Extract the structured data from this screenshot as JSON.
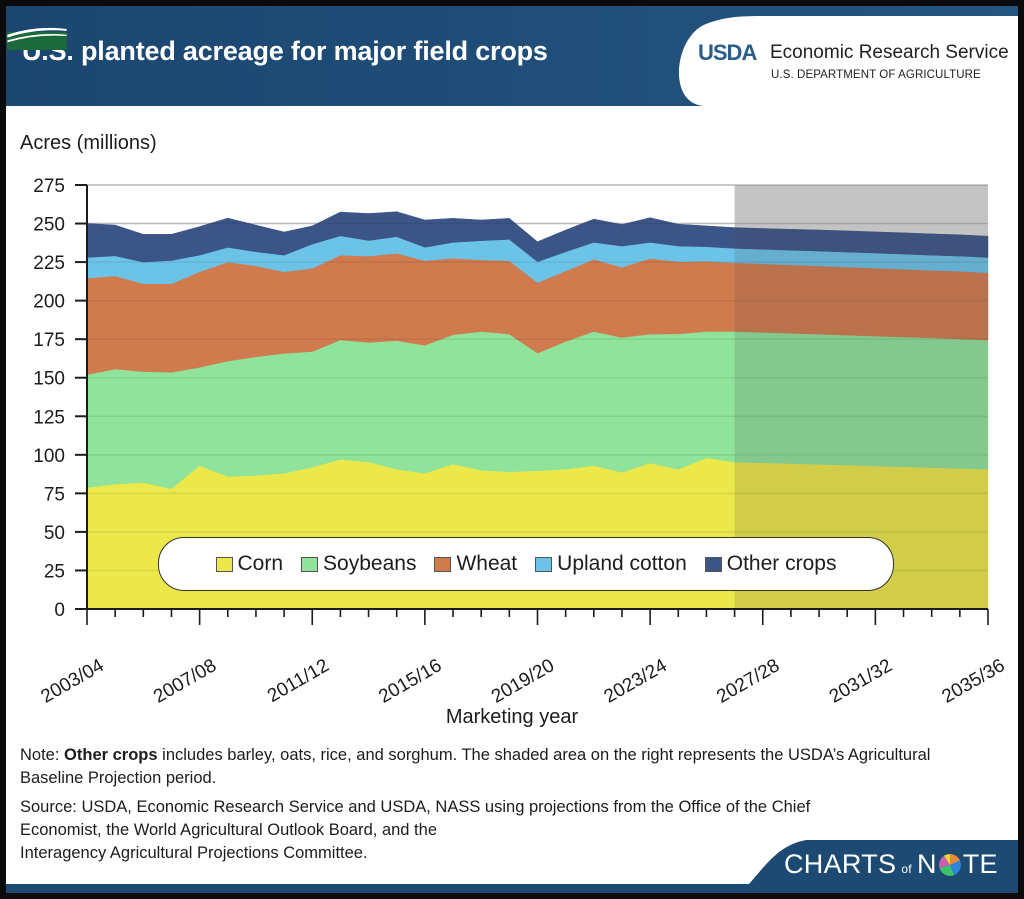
{
  "header": {
    "title": "U.S. planted acreage for major field crops",
    "logo_word": "USDA",
    "agency_name": "Economic Research Service",
    "department": "U.S. DEPARTMENT OF AGRICULTURE"
  },
  "legend": {
    "items": [
      {
        "label": "Corn",
        "color": "#ece84a"
      },
      {
        "label": "Soybeans",
        "color": "#8fe39b"
      },
      {
        "label": "Wheat",
        "color": "#d07b4e"
      },
      {
        "label": "Upland cotton",
        "color": "#6cc3e8"
      },
      {
        "label": "Other crops",
        "color": "#3c5587"
      }
    ]
  },
  "colors": {
    "header_bg": "#1d4a72",
    "projection_shade": "#dcdcdc",
    "axis": "#1c1c1c",
    "grid": "#c8c8c8"
  },
  "notes": {
    "note_label": "Note:",
    "note_bold": "Other crops",
    "note_text": "includes barley, oats, rice, and sorghum. The shaded area on the right represents the USDA’s Agricultural Baseline Projection period.",
    "source_line1": "Source: USDA, Economic Research Service and USDA, NASS using projections from the Office of the Chief",
    "source_line2": "Economist, the World Agricultural Outlook Board, and the",
    "source_line3": "Interagency Agricultural Projections Committee."
  },
  "footer": {
    "brand_left": "CHARTS",
    "brand_of": "of",
    "brand_right_n": "N",
    "brand_right_te": "TE"
  },
  "chart_data": {
    "type": "area",
    "stacked": true,
    "title": "U.S. planted acreage for major field crops",
    "xlabel": "Marketing year",
    "ylabel": "Acres (millions)",
    "ylim": [
      0,
      275
    ],
    "yticks": [
      0,
      25,
      50,
      75,
      100,
      125,
      150,
      175,
      200,
      225,
      250,
      275
    ],
    "grid": true,
    "legend_position": "bottom-center-inside",
    "projection_start": "2026/27",
    "projection_label": "USDA Agricultural Baseline Projection period",
    "xtick_labels": [
      "2003/04",
      "2007/08",
      "2011/12",
      "2015/16",
      "2019/20",
      "2023/24",
      "2027/28",
      "2031/32",
      "2035/36"
    ],
    "categories": [
      "2003/04",
      "2004/05",
      "2005/06",
      "2006/07",
      "2007/08",
      "2008/09",
      "2009/10",
      "2010/11",
      "2011/12",
      "2012/13",
      "2013/14",
      "2014/15",
      "2015/16",
      "2016/17",
      "2017/18",
      "2018/19",
      "2019/20",
      "2020/21",
      "2021/22",
      "2022/23",
      "2023/24",
      "2024/25",
      "2025/26",
      "2026/27",
      "2027/28",
      "2028/29",
      "2029/30",
      "2030/31",
      "2031/32",
      "2032/33",
      "2033/34",
      "2034/35",
      "2035/36"
    ],
    "series": [
      {
        "name": "Corn",
        "values": [
          78.8,
          81.0,
          82.0,
          78.0,
          93.0,
          86.0,
          86.6,
          88.0,
          92.0,
          97.0,
          95.4,
          90.6,
          88.0,
          94.0,
          90.0,
          89.0,
          89.7,
          90.7,
          93.0,
          88.6,
          94.6,
          90.6,
          98.0,
          95.3,
          94.8,
          94.3,
          93.8,
          93.3,
          92.7,
          92.2,
          91.7,
          91.2,
          90.7
        ]
      },
      {
        "name": "Soybeans",
        "values": [
          73.2,
          74.6,
          72.0,
          75.5,
          63.7,
          74.8,
          77.0,
          77.8,
          75.0,
          77.5,
          77.5,
          83.4,
          83.0,
          83.9,
          90.0,
          89.3,
          76.2,
          82.8,
          87.0,
          87.5,
          83.7,
          87.8,
          82.0,
          84.7,
          84.6,
          84.5,
          84.4,
          84.3,
          84.3,
          84.2,
          84.1,
          84.0,
          83.7
        ]
      },
      {
        "name": "Wheat",
        "values": [
          62.6,
          60.4,
          57.0,
          57.5,
          62.0,
          64.2,
          59.0,
          52.9,
          54.0,
          55.0,
          56.0,
          56.7,
          54.9,
          49.6,
          46.4,
          47.6,
          45.8,
          45.7,
          46.8,
          45.5,
          49.1,
          46.8,
          45.5,
          44.6,
          44.5,
          44.4,
          44.3,
          44.2,
          44.1,
          44.0,
          43.9,
          43.8,
          43.7
        ]
      },
      {
        "name": "Upland cotton",
        "values": [
          13.4,
          13.0,
          14.0,
          15.0,
          10.8,
          9.5,
          9.1,
          10.8,
          15.7,
          12.5,
          10.1,
          10.8,
          8.7,
          10.3,
          12.5,
          13.8,
          13.5,
          12.5,
          11.0,
          13.8,
          10.4,
          10.2,
          9.5,
          9.3,
          9.4,
          9.5,
          9.6,
          9.7,
          9.7,
          9.8,
          9.8,
          9.9,
          9.9
        ]
      },
      {
        "name": "Other crops",
        "values": [
          22.0,
          20.0,
          18.0,
          17.0,
          18.5,
          19.0,
          17.3,
          15.0,
          11.8,
          15.5,
          17.5,
          16.2,
          17.7,
          15.6,
          13.4,
          13.7,
          13.0,
          14.1,
          15.1,
          14.0,
          16.0,
          14.2,
          13.5,
          13.5,
          13.5,
          13.6,
          13.7,
          13.7,
          13.8,
          13.8,
          13.8,
          13.8,
          13.8
        ]
      }
    ]
  }
}
